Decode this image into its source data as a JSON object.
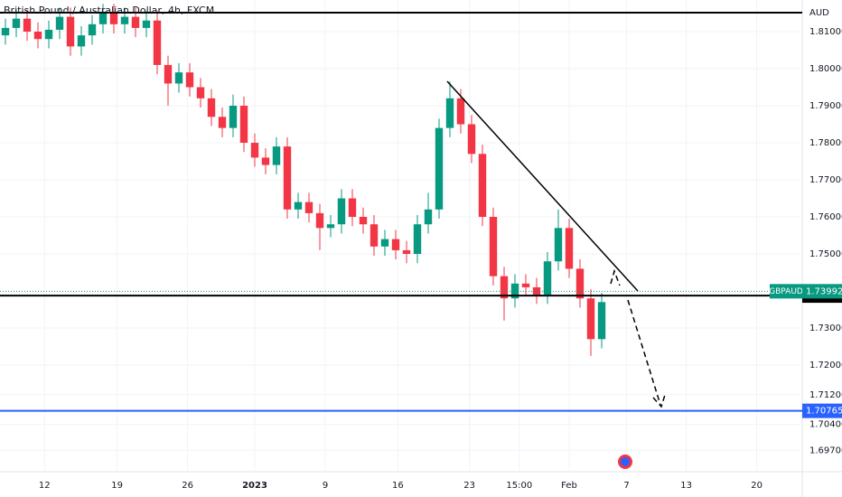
{
  "chart_data": {
    "type": "candlestick",
    "title": "British Pound / Australian Dollar, 4h, FXCM",
    "currency": "AUD",
    "open": [
      1.809,
      1.811,
      1.8135,
      1.81,
      1.808,
      1.8105,
      1.814,
      1.806,
      1.809,
      1.812,
      1.815,
      1.812,
      1.814,
      1.811,
      1.813,
      1.801,
      1.796,
      1.799,
      1.795,
      1.792,
      1.787,
      1.784,
      1.79,
      1.78,
      1.776,
      1.774,
      1.779,
      1.762,
      1.764,
      1.761,
      1.757,
      1.758,
      1.765,
      1.76,
      1.758,
      1.752,
      1.754,
      1.751,
      1.75,
      1.758,
      1.762,
      1.784,
      1.792,
      1.785,
      1.777,
      1.76,
      1.744,
      1.738,
      1.742,
      1.741,
      1.739,
      1.748,
      1.757,
      1.746,
      1.738,
      1.727
    ],
    "high": [
      1.8135,
      1.816,
      1.816,
      1.8125,
      1.813,
      1.8165,
      1.8165,
      1.8115,
      1.8145,
      1.8175,
      1.8175,
      1.8165,
      1.8165,
      1.8155,
      1.8155,
      1.8035,
      1.8015,
      1.8015,
      1.7975,
      1.7945,
      1.7895,
      1.793,
      1.7925,
      1.7825,
      1.7785,
      1.7815,
      1.7815,
      1.7665,
      1.7665,
      1.7635,
      1.7605,
      1.7675,
      1.7675,
      1.7625,
      1.7605,
      1.7565,
      1.7565,
      1.7535,
      1.7605,
      1.7665,
      1.7865,
      1.7965,
      1.7945,
      1.7875,
      1.7795,
      1.7625,
      1.7465,
      1.7445,
      1.7445,
      1.7435,
      1.7505,
      1.762,
      1.7595,
      1.7485,
      1.7405,
      1.7395
    ],
    "low": [
      1.8065,
      1.8085,
      1.8075,
      1.8055,
      1.8055,
      1.808,
      1.8035,
      1.8035,
      1.8065,
      1.8095,
      1.8095,
      1.8095,
      1.8085,
      1.8085,
      1.7985,
      1.79,
      1.7935,
      1.7925,
      1.7895,
      1.7845,
      1.7815,
      1.7815,
      1.7775,
      1.7735,
      1.7715,
      1.7715,
      1.7595,
      1.7595,
      1.7585,
      1.751,
      1.7545,
      1.7555,
      1.7575,
      1.7555,
      1.7495,
      1.7495,
      1.7485,
      1.7475,
      1.7475,
      1.7555,
      1.7595,
      1.7815,
      1.7825,
      1.7745,
      1.7575,
      1.7415,
      1.732,
      1.7355,
      1.7385,
      1.7365,
      1.7365,
      1.7455,
      1.7435,
      1.7355,
      1.7225,
      1.7245
    ],
    "close": [
      1.811,
      1.8135,
      1.81,
      1.808,
      1.8105,
      1.814,
      1.806,
      1.809,
      1.812,
      1.815,
      1.812,
      1.814,
      1.811,
      1.813,
      1.801,
      1.796,
      1.799,
      1.795,
      1.792,
      1.787,
      1.784,
      1.79,
      1.78,
      1.776,
      1.774,
      1.779,
      1.762,
      1.764,
      1.761,
      1.757,
      1.758,
      1.765,
      1.76,
      1.758,
      1.752,
      1.754,
      1.751,
      1.75,
      1.758,
      1.762,
      1.784,
      1.792,
      1.785,
      1.777,
      1.76,
      1.744,
      1.738,
      1.742,
      1.741,
      1.739,
      1.748,
      1.757,
      1.746,
      1.738,
      1.727,
      1.737
    ],
    "up_color": "#089981",
    "down_color": "#f23645",
    "ylim": [
      1.69122,
      1.81854
    ],
    "yticks": [
      {
        "value": 1.81,
        "label": "1.81000"
      },
      {
        "value": 1.8,
        "label": "1.80000"
      },
      {
        "value": 1.79,
        "label": "1.79000"
      },
      {
        "value": 1.78,
        "label": "1.78000"
      },
      {
        "value": 1.77,
        "label": "1.77000"
      },
      {
        "value": 1.76,
        "label": "1.76000"
      },
      {
        "value": 1.75,
        "label": "1.75000"
      },
      {
        "value": 1.73,
        "label": "1.73000"
      },
      {
        "value": 1.72,
        "label": "1.72000"
      },
      {
        "value": 1.712,
        "label": "1.71200"
      },
      {
        "value": 1.704,
        "label": "1.70400"
      },
      {
        "value": 1.697,
        "label": "1.69700"
      }
    ],
    "xlim": [
      0,
      74
    ],
    "xticks": [
      {
        "value": 4.1,
        "label": "12"
      },
      {
        "value": 10.8,
        "label": "19"
      },
      {
        "value": 17.3,
        "label": "26"
      },
      {
        "value": 23.5,
        "label": "2023"
      },
      {
        "value": 30,
        "label": "9"
      },
      {
        "value": 36.7,
        "label": "16"
      },
      {
        "value": 43.3,
        "label": "23"
      },
      {
        "value": 47.9,
        "label": "15:00"
      },
      {
        "value": 52.5,
        "label": "Feb"
      },
      {
        "value": 57.8,
        "label": "7"
      },
      {
        "value": 63.3,
        "label": "13"
      },
      {
        "value": 69.8,
        "label": "20"
      }
    ],
    "current_price": {
      "symbol": "GBPAUD",
      "value": 1.73992,
      "color": "#089981"
    },
    "price_lines": [
      {
        "value": 1.73876,
        "color": "#000000"
      },
      {
        "value": 1.70765,
        "color": "#2962ff"
      }
    ]
  }
}
